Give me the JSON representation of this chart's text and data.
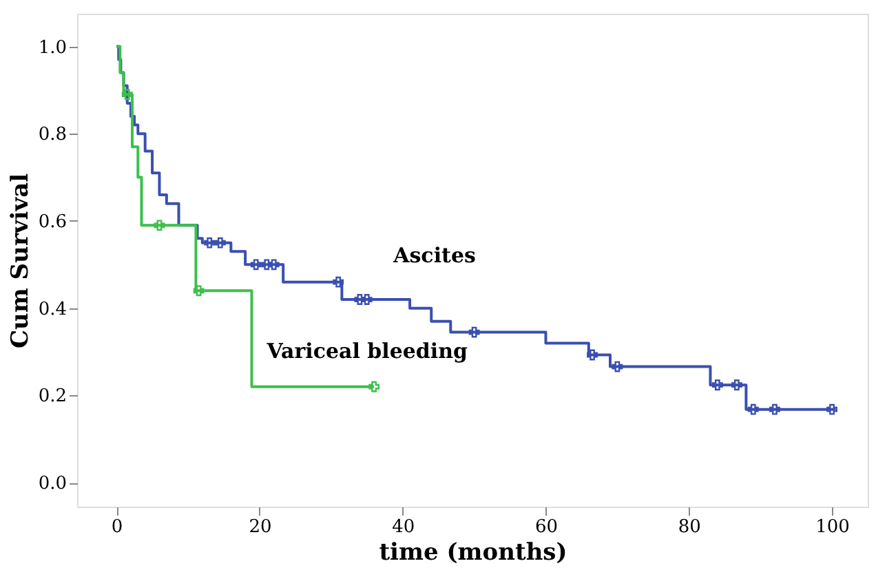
{
  "chart_data": {
    "type": "step",
    "xlabel": "time (months)",
    "ylabel": "Cum Survival",
    "xlim": [
      -5.5,
      105
    ],
    "ylim": [
      -0.055,
      1.075
    ],
    "xticks": [
      0,
      20,
      40,
      60,
      80,
      100
    ],
    "yticks": [
      {
        "value": 0,
        "label": "0.0"
      },
      {
        "value": 0.2,
        "label": "0.2"
      },
      {
        "value": 0.4,
        "label": "0.4"
      },
      {
        "value": 0.6,
        "label": "0.6"
      },
      {
        "value": 0.8,
        "label": "0.8"
      },
      {
        "value": 1,
        "label": "1.0"
      }
    ],
    "grid": false,
    "line_style": "solid",
    "series": [
      {
        "name": "Ascites",
        "color": "#3a4fb0",
        "x": [
          0,
          0.3,
          0.6,
          1,
          1.5,
          2,
          2.5,
          3,
          4,
          5,
          6,
          7,
          8.7,
          11.3,
          12,
          16,
          18,
          23.3,
          31.5,
          41,
          44,
          46.7,
          60,
          66,
          69,
          83,
          88,
          100.5
        ],
        "values": [
          1.0,
          0.97,
          0.94,
          0.91,
          0.87,
          0.84,
          0.82,
          0.8,
          0.76,
          0.71,
          0.66,
          0.64,
          0.59,
          0.56,
          0.55,
          0.53,
          0.5,
          0.46,
          0.42,
          0.4,
          0.37,
          0.345,
          0.32,
          0.293,
          0.266,
          0.224,
          0.168,
          0.168
        ]
      },
      {
        "name": "Variceal bleeding",
        "color": "#3cc04a",
        "x": [
          0,
          0.5,
          1,
          2.2,
          3,
          3.5,
          11.1,
          18.9,
          36
        ],
        "values": [
          1.0,
          0.94,
          0.89,
          0.77,
          0.7,
          0.59,
          0.44,
          0.22,
          0.22
        ]
      },
      {
        "color": "#3a4fb0",
        "type": "scatter",
        "marker": "cross",
        "x": [
          13,
          14.5,
          19.5,
          21,
          22,
          31,
          34,
          35,
          50,
          66.5,
          70,
          84,
          86.7,
          89,
          92,
          100
        ],
        "values": [
          0.55,
          0.55,
          0.5,
          0.5,
          0.5,
          0.46,
          0.42,
          0.42,
          0.345,
          0.293,
          0.266,
          0.224,
          0.224,
          0.168,
          0.168,
          0.168
        ]
      },
      {
        "color": "#3cc04a",
        "type": "scatter",
        "marker": "cross",
        "x": [
          1.5,
          6,
          11.5,
          36
        ],
        "values": [
          0.89,
          0.59,
          0.44,
          0.22
        ]
      }
    ]
  }
}
